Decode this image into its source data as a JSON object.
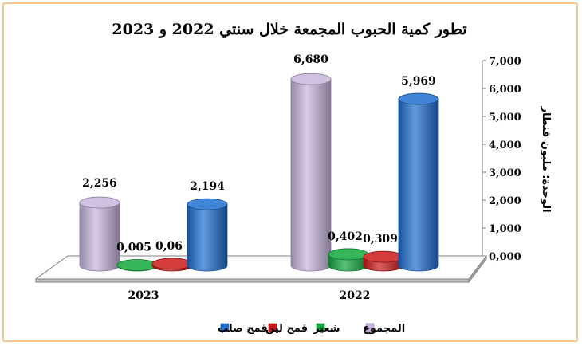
{
  "chart_data": {
    "type": "bar",
    "title": "تطور كمية الحبوب المجمعة خلال سنتي 2022 و 2023",
    "ylabel": "الوحدة: مليون قنطار",
    "ylim": [
      0,
      7
    ],
    "yticks": [
      "0,000",
      "1,000",
      "2,000",
      "3,000",
      "4,000",
      "5,000",
      "6,000",
      "7,000"
    ],
    "categories": [
      "2023",
      "2022"
    ],
    "legend_position": "bottom",
    "series": [
      {
        "name": "المجموع",
        "color": "#c8b6de",
        "values": [
          2.256,
          6.68
        ],
        "labels": [
          "2,256",
          "6,680"
        ]
      },
      {
        "name": "شعير",
        "color": "#12a83e",
        "values": [
          0.005,
          0.402
        ],
        "labels": [
          "0,005",
          "0,402"
        ]
      },
      {
        "name": "قمح لين",
        "color": "#cc1a1a",
        "values": [
          0.06,
          0.309
        ],
        "labels": [
          "0,06",
          "0,309"
        ]
      },
      {
        "name": "قمح صلب",
        "color": "#1f6fd0",
        "values": [
          2.194,
          5.969
        ],
        "labels": [
          "2,194",
          "5,969"
        ]
      }
    ],
    "legend_order": [
      3,
      2,
      1,
      0
    ],
    "grid": false
  }
}
